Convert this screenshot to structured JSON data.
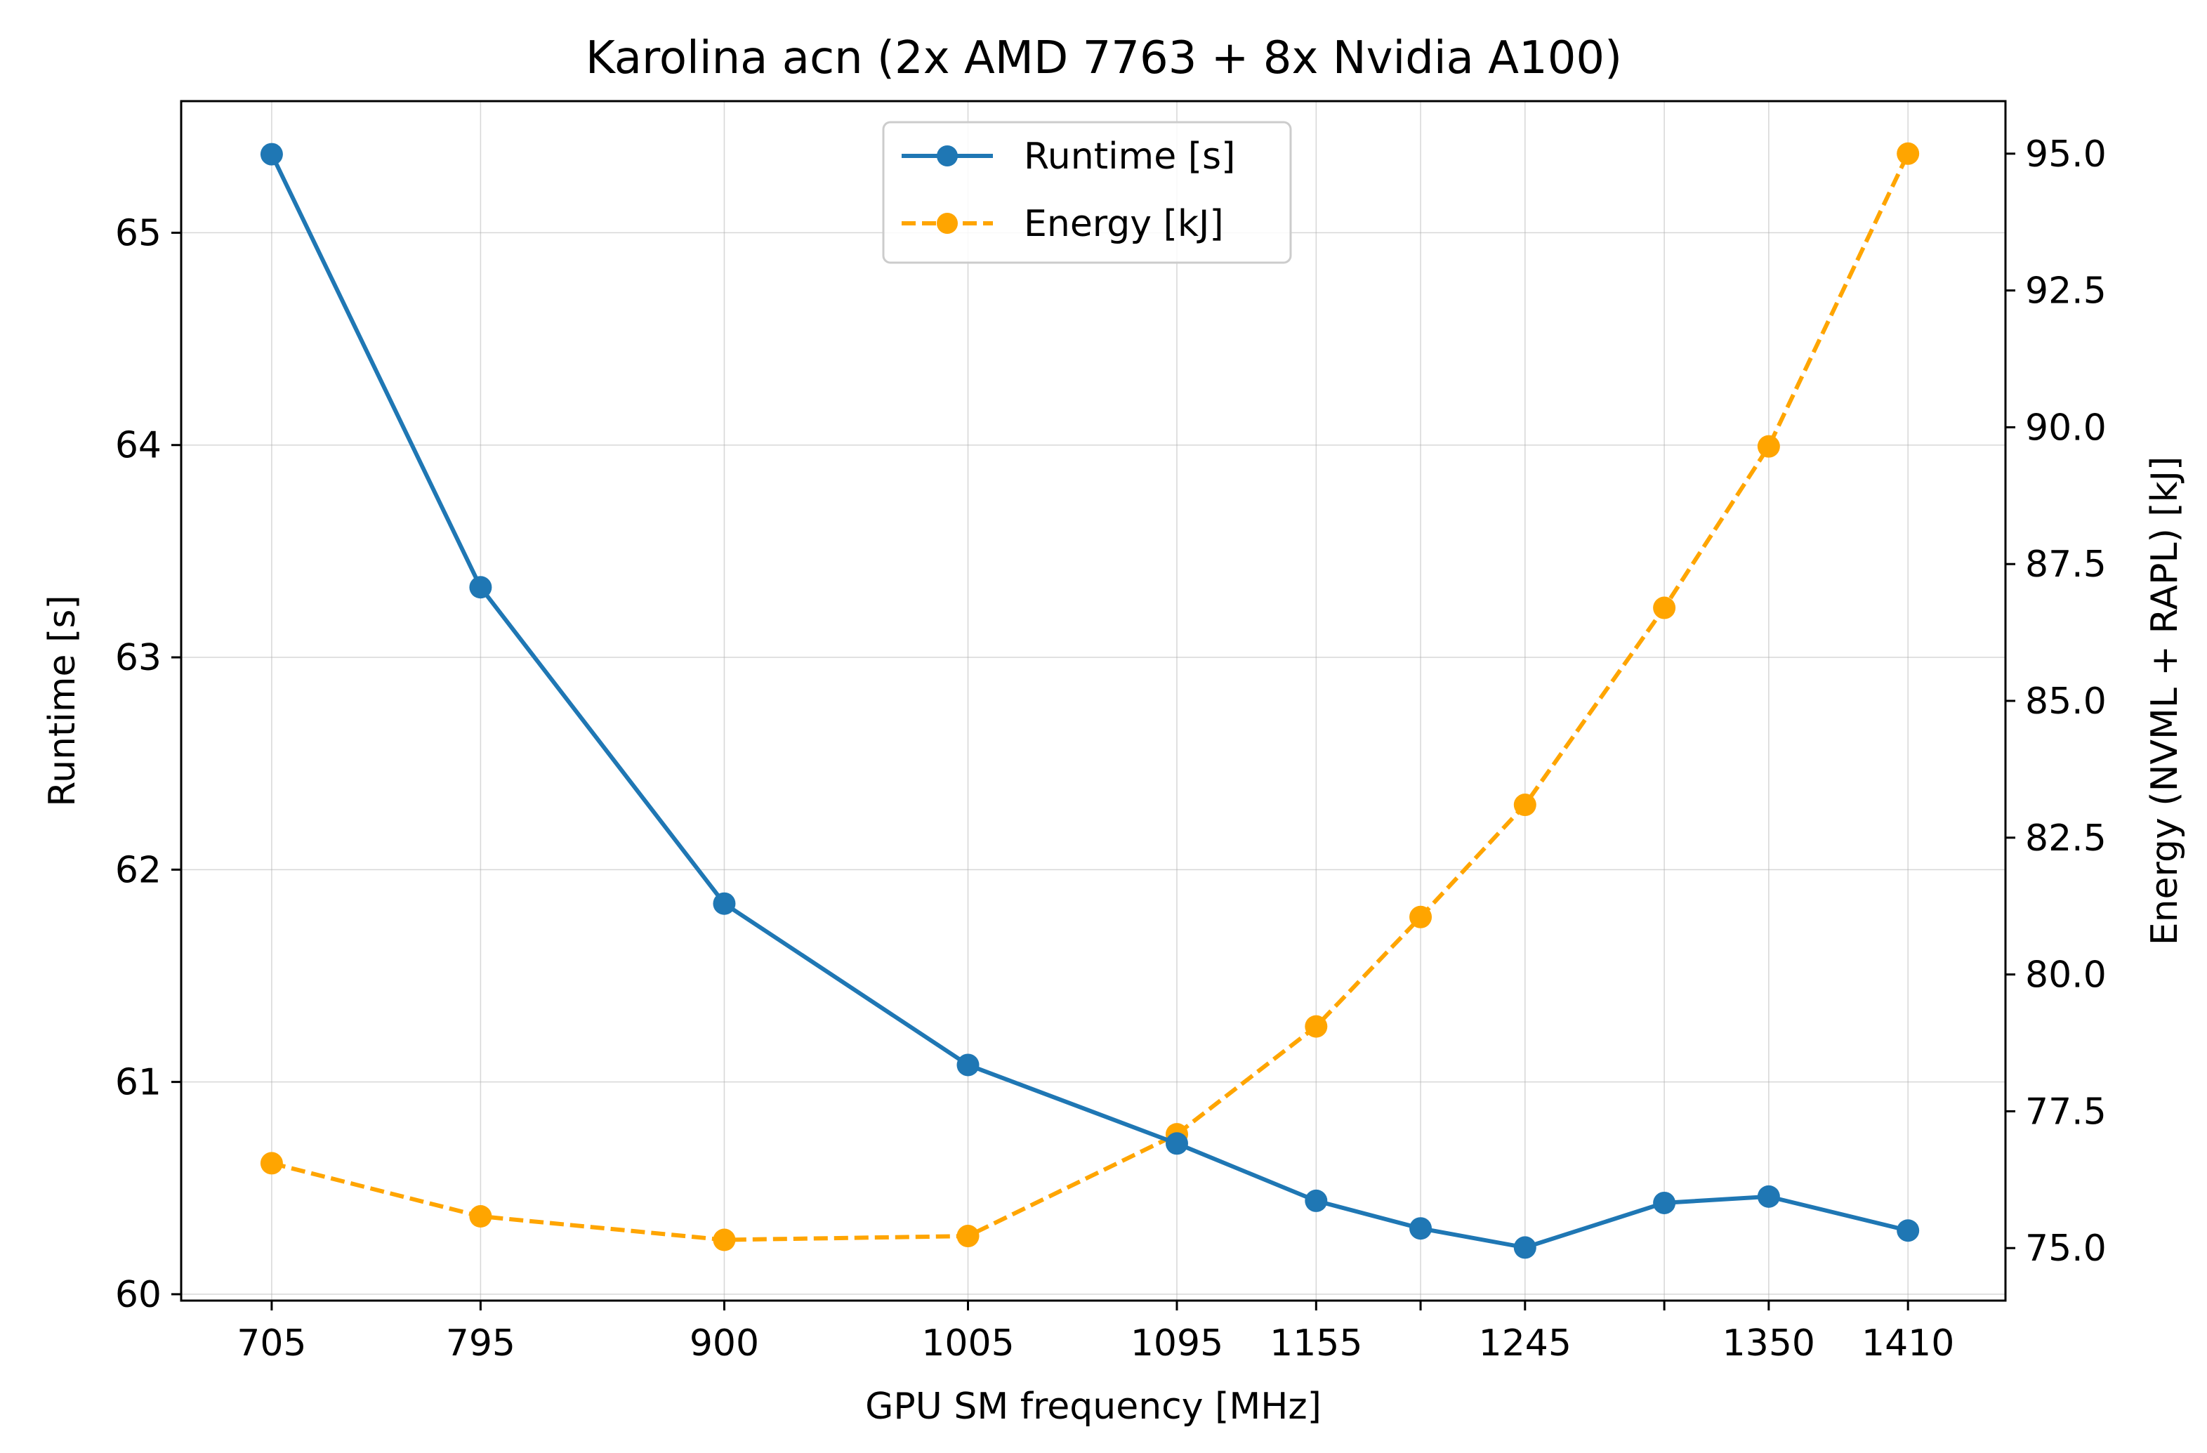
{
  "chart_data": {
    "type": "line",
    "title": "Karolina acn (2x AMD 7763 + 8x Nvidia A100)",
    "xlabel": "GPU SM frequency [MHz]",
    "ylabel_left": "Runtime [s]",
    "ylabel_right": "Energy (NVML + RAPL) [kJ]",
    "xlim": [
      666,
      1452
    ],
    "ylim_left": [
      59.97,
      65.62
    ],
    "ylim_right": [
      74.04,
      95.96
    ],
    "x": [
      705,
      795,
      900,
      1005,
      1095,
      1155,
      1200,
      1245,
      1305,
      1350,
      1410
    ],
    "x_ticks": [
      705,
      795,
      900,
      1005,
      1095,
      1155,
      1200,
      1245,
      1305,
      1350,
      1410
    ],
    "x_tick_labels": [
      "705",
      "795",
      "900",
      "1005",
      "1095",
      "1155",
      "",
      "1245",
      "",
      "1350",
      "1410"
    ],
    "y_left_ticks": [
      60,
      61,
      62,
      63,
      64,
      65
    ],
    "y_left_tick_labels": [
      "60",
      "61",
      "62",
      "63",
      "64",
      "65"
    ],
    "y_right_ticks": [
      75.0,
      77.5,
      80.0,
      82.5,
      85.0,
      87.5,
      90.0,
      92.5,
      95.0
    ],
    "y_right_tick_labels": [
      "75.0",
      "77.5",
      "80.0",
      "82.5",
      "85.0",
      "87.5",
      "90.0",
      "92.5",
      "95.0"
    ],
    "grid": true,
    "legend_position": "top-center",
    "series": [
      {
        "name": "Runtime [s]",
        "axis": "left",
        "color": "#1f77b4",
        "line_style": "solid",
        "values": [
          65.37,
          63.33,
          61.84,
          61.08,
          60.71,
          60.44,
          60.31,
          60.22,
          60.43,
          60.46,
          60.3
        ]
      },
      {
        "name": "Energy [kJ]",
        "axis": "right",
        "color": "#ffa500",
        "line_style": "dashed",
        "values": [
          76.55,
          75.58,
          75.15,
          75.22,
          77.08,
          79.05,
          81.05,
          83.1,
          86.7,
          89.65,
          95.0
        ]
      }
    ]
  }
}
